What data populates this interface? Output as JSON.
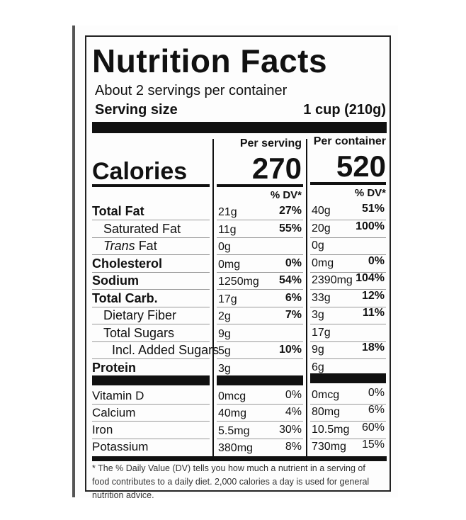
{
  "title": "Nutrition Facts",
  "servings": "About 2 servings per container",
  "serving_size": {
    "label": "Serving size",
    "value": "1 cup (210g)"
  },
  "columns": [
    "Per serving",
    "Per container"
  ],
  "calories": {
    "label": "Calories",
    "per_serving": "270",
    "per_container": "520"
  },
  "dv_header": "% DV*",
  "nutrients": [
    {
      "name": "Total Fat",
      "per_serving": "21g",
      "per_serving_dv": "27%",
      "per_container": "40g",
      "per_container_dv": "51%"
    },
    {
      "name": "Saturated Fat",
      "per_serving": "11g",
      "per_serving_dv": "55%",
      "per_container": "20g",
      "per_container_dv": "100%"
    },
    {
      "name": {
        "italic": "Trans",
        "text": "Fat"
      },
      "per_serving": "0g",
      "per_container": "0g"
    },
    {
      "name": "Cholesterol",
      "per_serving": "0mg",
      "per_serving_dv": "0%",
      "per_container": "0mg",
      "per_container_dv": "0%"
    },
    {
      "name": "Sodium",
      "per_serving": "1250mg",
      "per_serving_dv": "54%",
      "per_container": "2390mg",
      "per_container_dv": "104%"
    },
    {
      "name": "Total Carb.",
      "per_serving": "17g",
      "per_serving_dv": "6%",
      "per_container": "33g",
      "per_container_dv": "12%"
    },
    {
      "name": "Dietary Fiber",
      "per_serving": "2g",
      "per_serving_dv": "7%",
      "per_container": "3g",
      "per_container_dv": "11%"
    },
    {
      "name": "Total Sugars",
      "per_serving": "9g",
      "per_container": "17g"
    },
    {
      "name": "Incl. Added Sugars",
      "per_serving": "5g",
      "per_serving_dv": "10%",
      "per_container": "9g",
      "per_container_dv": "18%"
    },
    {
      "name": "Protein",
      "per_serving": "3g",
      "per_container": "6g"
    }
  ],
  "vitamins": [
    {
      "name": "Vitamin D",
      "per_serving": "0mcg",
      "per_serving_dv": "0%",
      "per_container": "0mcg",
      "per_container_dv": "0%"
    },
    {
      "name": "Calcium",
      "per_serving": "40mg",
      "per_serving_dv": "4%",
      "per_container": "80mg",
      "per_container_dv": "6%"
    },
    {
      "name": "Iron",
      "per_serving": "5.5mg",
      "per_serving_dv": "30%",
      "per_container": "10.5mg",
      "per_container_dv": "60%"
    },
    {
      "name": "Potassium",
      "per_serving": "380mg",
      "per_serving_dv": "8%",
      "per_container": "730mg",
      "per_container_dv": "15%"
    }
  ],
  "footnote": "* The % Daily Value (DV) tells you how much a nutrient in a serving of food contributes to a daily diet. 2,000 calories a day is used for general nutrition advice."
}
